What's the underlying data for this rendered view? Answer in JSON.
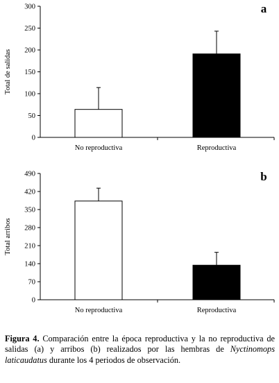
{
  "chart_data": [
    {
      "type": "bar",
      "panel_label": "a",
      "categories": [
        "No reproductiva",
        "Reproductiva"
      ],
      "values": [
        64,
        191
      ],
      "error": [
        50,
        52
      ],
      "colors": [
        "#ffffff",
        "#000000"
      ],
      "ylabel": "Total de salidas",
      "xlabel": "",
      "ylim": [
        0,
        300
      ],
      "yticks": [
        "0",
        "50",
        "100",
        "150",
        "200",
        "250",
        "300"
      ],
      "grid": false,
      "legend": "none"
    },
    {
      "type": "bar",
      "panel_label": "b",
      "categories": [
        "No reproductiva",
        "Reproductiva"
      ],
      "values": [
        383,
        134
      ],
      "error": [
        50,
        50
      ],
      "colors": [
        "#ffffff",
        "#000000"
      ],
      "ylabel": "Total arribos",
      "xlabel": "",
      "ylim": [
        0,
        490
      ],
      "yticks": [
        "0",
        "70",
        "140",
        "210",
        "280",
        "350",
        "420",
        "490"
      ],
      "grid": false,
      "legend": "none"
    }
  ],
  "caption": {
    "label": "Figura 4.",
    "text_1": " Comparación entre la época reproductiva y la  no reproductiva de salidas (a) y arribos (b) realizados por las hembras de ",
    "species": "Nyctinomops laticaudatus",
    "text_2": " durante los 4 periodos de observación."
  }
}
